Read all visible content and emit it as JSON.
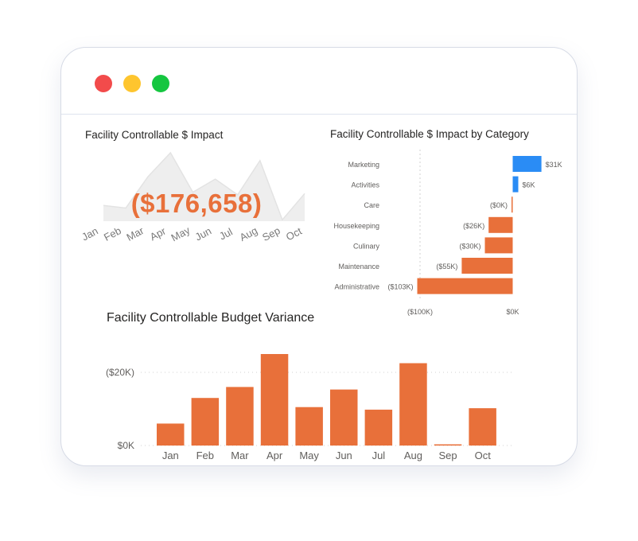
{
  "window": {
    "controls": [
      {
        "name": "close-dot",
        "color": "#f24b4b"
      },
      {
        "name": "minimize-dot",
        "color": "#fec52e"
      },
      {
        "name": "maximize-dot",
        "color": "#15c640"
      }
    ]
  },
  "colors": {
    "negative": "#e8703a",
    "positive": "#2a8cf5",
    "sparkline": "#eeeeee",
    "axis_text": "#605e5c",
    "grid": "#d0d0d0"
  },
  "chart_data": [
    {
      "type": "area",
      "title": "Facility Controllable $ Impact",
      "kpi_value": "($176,658)",
      "categories": [
        "Jan",
        "Feb",
        "Mar",
        "Apr",
        "May",
        "Jun",
        "Jul",
        "Aug",
        "Sep",
        "Oct"
      ],
      "values": [
        6,
        5,
        17,
        26,
        11,
        16,
        10,
        23,
        0.5,
        10.5
      ],
      "grid": false,
      "legend": "none"
    },
    {
      "type": "bar",
      "orientation": "horizontal",
      "title": "Facility Controllable $ Impact by Category",
      "categories": [
        "Marketing",
        "Activities",
        "Care",
        "Housekeeping",
        "Culinary",
        "Maintenance",
        "Administrative"
      ],
      "values": [
        31,
        6,
        -0.4,
        -26,
        -30,
        -55,
        -103
      ],
      "data_labels": [
        "$31K",
        "$6K",
        "($0K)",
        "($26K)",
        "($30K)",
        "($55K)",
        "($103K)"
      ],
      "xlim": [
        -130,
        55
      ],
      "xticks": [
        -100,
        0
      ],
      "xtick_labels": [
        "($100K)",
        "$0K"
      ],
      "grid": true,
      "legend": "none"
    },
    {
      "type": "bar",
      "title": "Facility Controllable Budget Variance",
      "categories": [
        "Jan",
        "Feb",
        "Mar",
        "Apr",
        "May",
        "Jun",
        "Jul",
        "Aug",
        "Sep",
        "Oct"
      ],
      "values": [
        6,
        13,
        16,
        25,
        10.5,
        15.3,
        9.8,
        22.5,
        0.3,
        10.2
      ],
      "ylim": [
        0,
        27
      ],
      "yticks": [
        0,
        20
      ],
      "ytick_labels": [
        "$0K",
        "($20K)"
      ],
      "grid": true,
      "legend": "none"
    }
  ]
}
